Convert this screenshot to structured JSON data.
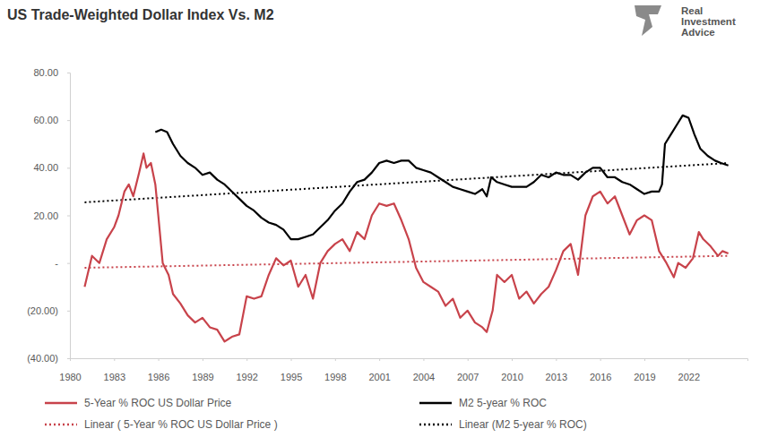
{
  "chart_data": {
    "type": "line",
    "title": "US Trade-Weighted Dollar Index Vs. M2",
    "annotations": [
      "Real",
      "Investment",
      "Advice"
    ],
    "xlim": [
      1980,
      2026
    ],
    "xticks": [
      1980,
      1983,
      1986,
      1989,
      1992,
      1995,
      1998,
      2001,
      2004,
      2007,
      2010,
      2013,
      2016,
      2019,
      2022
    ],
    "ylim": [
      -40,
      80
    ],
    "yticks": [
      {
        "value": -40,
        "label": "(40.00)"
      },
      {
        "value": -20,
        "label": "(20.00)"
      },
      {
        "value": 0,
        "label": "-"
      },
      {
        "value": 20,
        "label": "20.00"
      },
      {
        "value": 40,
        "label": "40.00"
      },
      {
        "value": 60,
        "label": "60.00"
      },
      {
        "value": 80,
        "label": "80.00"
      }
    ],
    "grid": false,
    "legend": "bottom",
    "series": [
      {
        "name": "5-Year % ROC US Dollar Price",
        "color": "#c8434b",
        "line_style": "solid",
        "x": [
          1981,
          1981.5,
          1982,
          1982.5,
          1983,
          1983.3,
          1983.7,
          1984,
          1984.3,
          1984.7,
          1985,
          1985.2,
          1985.5,
          1985.8,
          1986,
          1986.3,
          1986.7,
          1987,
          1987.5,
          1988,
          1988.5,
          1989,
          1989.5,
          1990,
          1990.5,
          1991,
          1991.5,
          1992,
          1992.5,
          1993,
          1993.5,
          1994,
          1994.5,
          1995,
          1995.5,
          1996,
          1996.5,
          1997,
          1997.5,
          1998,
          1998.5,
          1999,
          1999.5,
          2000,
          2000.5,
          2001,
          2001.5,
          2002,
          2002.5,
          2003,
          2003.5,
          2004,
          2004.5,
          2005,
          2005.5,
          2006,
          2006.5,
          2007,
          2007.5,
          2008,
          2008.3,
          2008.7,
          2009,
          2009.5,
          2010,
          2010.5,
          2011,
          2011.5,
          2012,
          2012.5,
          2013,
          2013.5,
          2014,
          2014.5,
          2015,
          2015.5,
          2016,
          2016.5,
          2017,
          2017.5,
          2018,
          2018.5,
          2019,
          2019.5,
          2020,
          2020.5,
          2021,
          2021.3,
          2021.8,
          2022.3,
          2022.7,
          2023,
          2023.5,
          2024,
          2024.3,
          2024.7
        ],
        "values": [
          -10,
          3,
          0,
          10,
          15,
          20,
          30,
          33,
          28,
          38,
          46,
          40,
          42,
          33,
          20,
          0,
          -5,
          -13,
          -17,
          -22,
          -25,
          -23,
          -27,
          -28,
          -33,
          -31,
          -30,
          -14,
          -15,
          -14,
          -5,
          2,
          -1,
          1,
          -10,
          -5,
          -15,
          0,
          5,
          8,
          10,
          5,
          13,
          10,
          20,
          25,
          24,
          25,
          18,
          10,
          -2,
          -8,
          -10,
          -12,
          -18,
          -15,
          -23,
          -20,
          -25,
          -27,
          -29,
          -20,
          -5,
          -8,
          -5,
          -15,
          -12,
          -17,
          -13,
          -10,
          -3,
          5,
          8,
          -5,
          20,
          28,
          30,
          25,
          28,
          20,
          12,
          18,
          20,
          18,
          5,
          0,
          -6,
          0,
          -2,
          2,
          13,
          10,
          7,
          3,
          5,
          4
        ]
      },
      {
        "name": "M2 5-year % ROC",
        "color": "#000000",
        "line_style": "solid",
        "x": [
          1985.8,
          1986.2,
          1986.6,
          1987,
          1987.5,
          1988,
          1988.5,
          1989,
          1989.5,
          1990,
          1990.5,
          1991,
          1991.5,
          1992,
          1992.5,
          1993,
          1993.5,
          1994,
          1994.5,
          1995,
          1995.5,
          1996,
          1996.5,
          1997,
          1997.5,
          1998,
          1998.5,
          1999,
          1999.5,
          2000,
          2000.5,
          2001,
          2001.5,
          2002,
          2002.5,
          2003,
          2003.5,
          2004,
          2004.5,
          2005,
          2005.5,
          2006,
          2006.5,
          2007,
          2007.5,
          2008,
          2008.3,
          2008.6,
          2009,
          2009.5,
          2010,
          2010.5,
          2011,
          2011.5,
          2012,
          2012.5,
          2013,
          2013.5,
          2014,
          2014.5,
          2015,
          2015.5,
          2016,
          2016.5,
          2017,
          2017.5,
          2018,
          2018.5,
          2019,
          2019.5,
          2020,
          2020.2,
          2020.4,
          2020.8,
          2021.2,
          2021.6,
          2022,
          2022.4,
          2022.8,
          2023.3,
          2023.8,
          2024.2,
          2024.7
        ],
        "values": [
          55,
          56,
          55,
          50,
          45,
          42,
          40,
          37,
          38,
          35,
          33,
          30,
          27,
          24,
          22,
          19,
          17,
          16,
          14,
          10,
          10,
          11,
          12,
          15,
          18,
          22,
          25,
          30,
          34,
          35,
          38,
          42,
          43,
          42,
          43,
          43,
          40,
          39,
          38,
          36,
          34,
          32,
          31,
          30,
          29,
          31,
          28,
          36,
          34,
          33,
          32,
          32,
          32,
          34,
          37,
          36,
          38,
          37,
          37,
          35,
          38,
          40,
          40,
          36,
          36,
          34,
          33,
          31,
          29,
          30,
          30,
          33,
          50,
          54,
          58,
          62,
          61,
          54,
          48,
          45,
          43,
          42,
          41
        ]
      },
      {
        "name": "Linear ( 5-Year % ROC US Dollar Price )",
        "color": "#c8434b",
        "line_style": "dotted",
        "x": [
          1981,
          2024.7
        ],
        "values": [
          -2,
          3
        ]
      },
      {
        "name": "Linear (M2 5-year % ROC)",
        "color": "#000000",
        "line_style": "dotted",
        "x": [
          1981,
          2024.7
        ],
        "values": [
          25.5,
          42
        ]
      }
    ]
  }
}
